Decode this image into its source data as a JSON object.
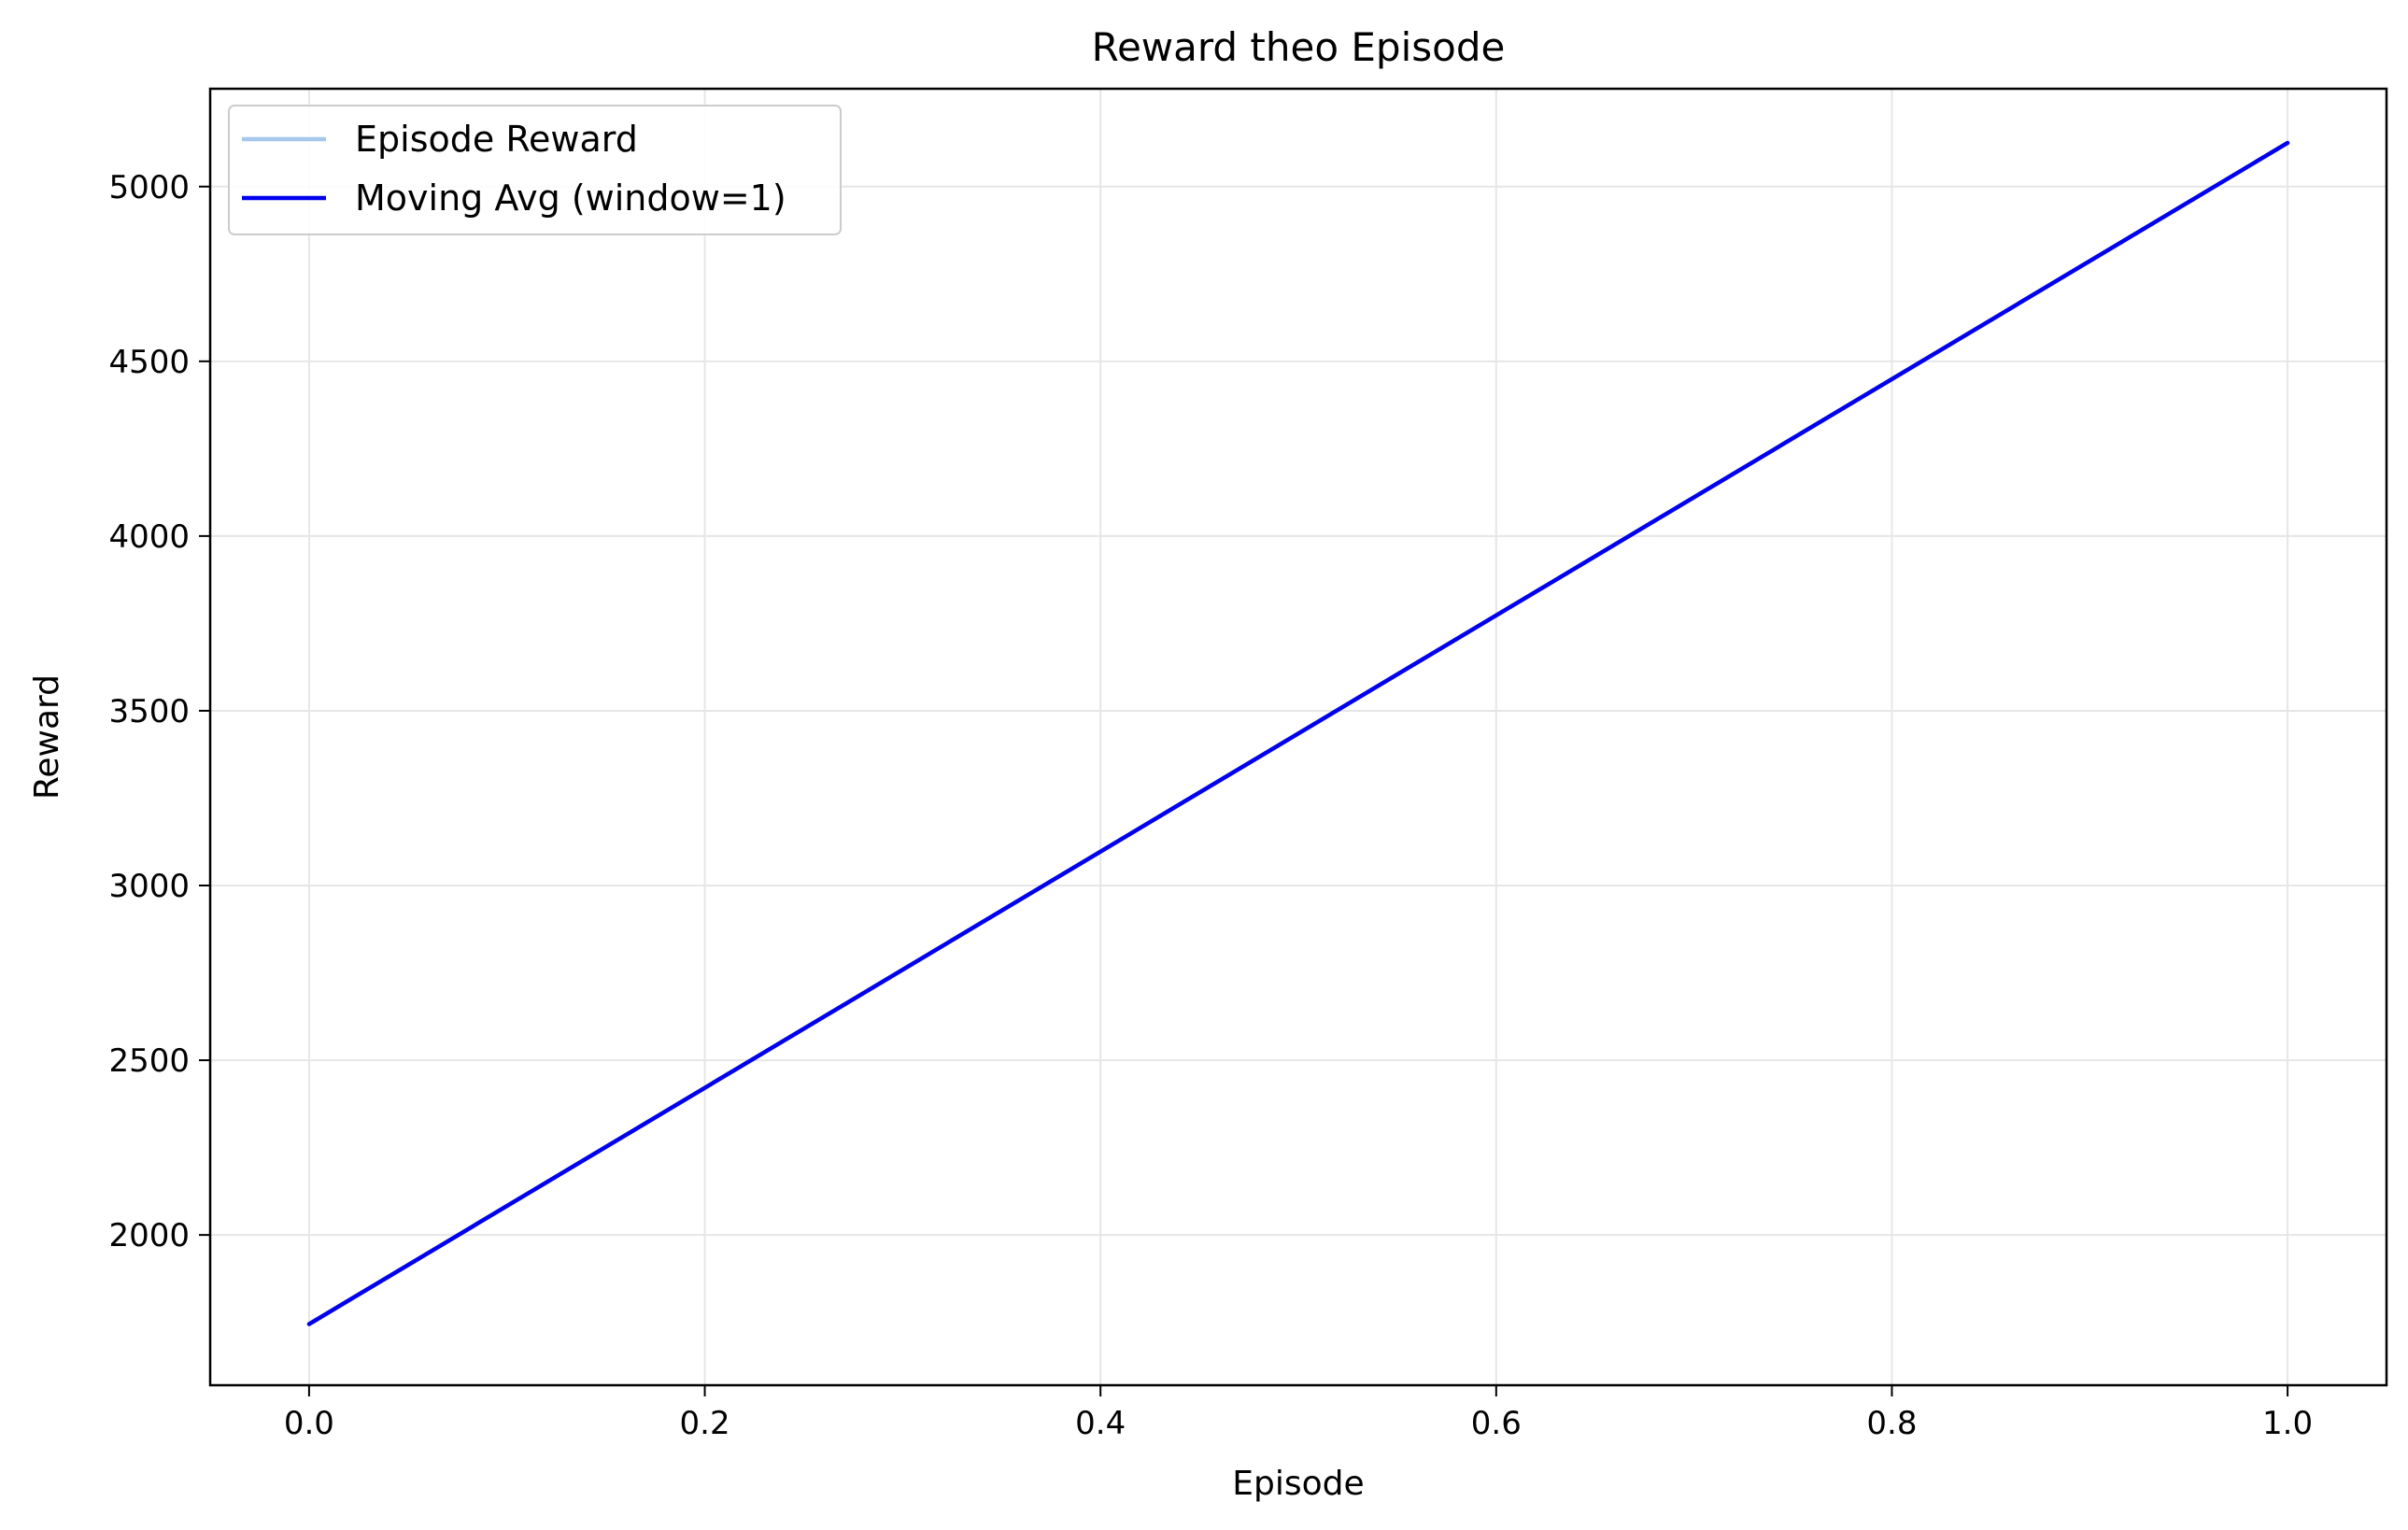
{
  "chart_data": {
    "type": "line",
    "title": "Reward theo Episode",
    "xlabel": "Episode",
    "ylabel": "Reward",
    "xlim": [
      -0.05,
      1.05
    ],
    "ylim": [
      1570,
      5280
    ],
    "xticks": [
      0.0,
      0.2,
      0.4,
      0.6,
      0.8,
      1.0
    ],
    "xtick_labels": [
      "0.0",
      "0.2",
      "0.4",
      "0.6",
      "0.8",
      "1.0"
    ],
    "yticks": [
      2000,
      2500,
      3000,
      3500,
      4000,
      4500,
      5000
    ],
    "ytick_labels": [
      "2000",
      "2500",
      "3000",
      "3500",
      "4000",
      "4500",
      "5000"
    ],
    "grid": true,
    "legend_position": "upper-left",
    "series": [
      {
        "name": "Episode Reward",
        "x": [
          0,
          1
        ],
        "y": [
          1745,
          5125
        ],
        "color": "#a6c8ec"
      },
      {
        "name": "Moving Avg (window=1)",
        "x": [
          0,
          1
        ],
        "y": [
          1745,
          5125
        ],
        "color": "#0000ee"
      }
    ]
  }
}
